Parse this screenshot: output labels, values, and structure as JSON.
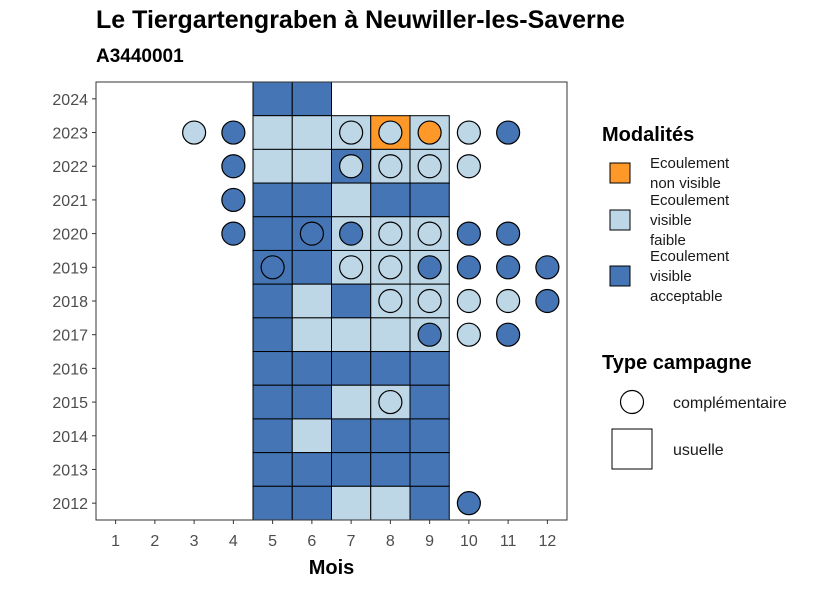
{
  "chart_data": {
    "type": "heatmap",
    "title": "Le Tiergartengraben à Neuwiller-les-Saverne",
    "subtitle": "A3440001",
    "xlabel": "Mois",
    "ylabel": "",
    "x_ticks": [
      1,
      2,
      3,
      4,
      5,
      6,
      7,
      8,
      9,
      10,
      11,
      12
    ],
    "y_ticks": [
      2012,
      2013,
      2014,
      2015,
      2016,
      2017,
      2018,
      2019,
      2020,
      2021,
      2022,
      2023,
      2024
    ],
    "colors": {
      "Ecoulement non visible": "#fe9929",
      "Ecoulement visible faible": "#bdd7e7",
      "Ecoulement visible acceptable": "#4575b4"
    },
    "legend_modalites": {
      "title": "Modalités",
      "items": [
        {
          "key": "Ecoulement non visible",
          "lines": [
            "Ecoulement",
            "non visible"
          ]
        },
        {
          "key": "Ecoulement visible faible",
          "lines": [
            "Ecoulement",
            "visible",
            "faible"
          ]
        },
        {
          "key": "Ecoulement visible acceptable",
          "lines": [
            "Ecoulement",
            "visible",
            "acceptable"
          ]
        }
      ]
    },
    "legend_type": {
      "title": "Type campagne",
      "items": [
        {
          "key": "complémentaire",
          "label": "complémentaire",
          "shape": "circle"
        },
        {
          "key": "usuelle",
          "label": "usuelle",
          "shape": "square"
        }
      ]
    },
    "usuelle": [
      {
        "year": 2024,
        "month": 5,
        "value": "Ecoulement visible acceptable"
      },
      {
        "year": 2024,
        "month": 6,
        "value": "Ecoulement visible acceptable"
      },
      {
        "year": 2023,
        "month": 5,
        "value": "Ecoulement visible faible"
      },
      {
        "year": 2023,
        "month": 6,
        "value": "Ecoulement visible faible"
      },
      {
        "year": 2023,
        "month": 7,
        "value": "Ecoulement visible faible"
      },
      {
        "year": 2023,
        "month": 8,
        "value": "Ecoulement non visible"
      },
      {
        "year": 2023,
        "month": 9,
        "value": "Ecoulement visible faible"
      },
      {
        "year": 2022,
        "month": 5,
        "value": "Ecoulement visible faible"
      },
      {
        "year": 2022,
        "month": 6,
        "value": "Ecoulement visible faible"
      },
      {
        "year": 2022,
        "month": 7,
        "value": "Ecoulement visible acceptable"
      },
      {
        "year": 2022,
        "month": 8,
        "value": "Ecoulement visible faible"
      },
      {
        "year": 2022,
        "month": 9,
        "value": "Ecoulement visible faible"
      },
      {
        "year": 2021,
        "month": 5,
        "value": "Ecoulement visible acceptable"
      },
      {
        "year": 2021,
        "month": 6,
        "value": "Ecoulement visible acceptable"
      },
      {
        "year": 2021,
        "month": 7,
        "value": "Ecoulement visible faible"
      },
      {
        "year": 2021,
        "month": 8,
        "value": "Ecoulement visible acceptable"
      },
      {
        "year": 2021,
        "month": 9,
        "value": "Ecoulement visible acceptable"
      },
      {
        "year": 2020,
        "month": 5,
        "value": "Ecoulement visible acceptable"
      },
      {
        "year": 2020,
        "month": 6,
        "value": "Ecoulement visible acceptable"
      },
      {
        "year": 2020,
        "month": 7,
        "value": "Ecoulement visible faible"
      },
      {
        "year": 2020,
        "month": 8,
        "value": "Ecoulement visible faible"
      },
      {
        "year": 2020,
        "month": 9,
        "value": "Ecoulement visible faible"
      },
      {
        "year": 2019,
        "month": 5,
        "value": "Ecoulement visible acceptable"
      },
      {
        "year": 2019,
        "month": 6,
        "value": "Ecoulement visible acceptable"
      },
      {
        "year": 2019,
        "month": 7,
        "value": "Ecoulement visible faible"
      },
      {
        "year": 2019,
        "month": 8,
        "value": "Ecoulement visible faible"
      },
      {
        "year": 2019,
        "month": 9,
        "value": "Ecoulement visible faible"
      },
      {
        "year": 2018,
        "month": 5,
        "value": "Ecoulement visible acceptable"
      },
      {
        "year": 2018,
        "month": 6,
        "value": "Ecoulement visible faible"
      },
      {
        "year": 2018,
        "month": 7,
        "value": "Ecoulement visible acceptable"
      },
      {
        "year": 2018,
        "month": 8,
        "value": "Ecoulement visible faible"
      },
      {
        "year": 2018,
        "month": 9,
        "value": "Ecoulement visible faible"
      },
      {
        "year": 2017,
        "month": 5,
        "value": "Ecoulement visible acceptable"
      },
      {
        "year": 2017,
        "month": 6,
        "value": "Ecoulement visible faible"
      },
      {
        "year": 2017,
        "month": 7,
        "value": "Ecoulement visible faible"
      },
      {
        "year": 2017,
        "month": 8,
        "value": "Ecoulement visible faible"
      },
      {
        "year": 2017,
        "month": 9,
        "value": "Ecoulement visible faible"
      },
      {
        "year": 2016,
        "month": 5,
        "value": "Ecoulement visible acceptable"
      },
      {
        "year": 2016,
        "month": 6,
        "value": "Ecoulement visible acceptable"
      },
      {
        "year": 2016,
        "month": 7,
        "value": "Ecoulement visible acceptable"
      },
      {
        "year": 2016,
        "month": 8,
        "value": "Ecoulement visible acceptable"
      },
      {
        "year": 2016,
        "month": 9,
        "value": "Ecoulement visible acceptable"
      },
      {
        "year": 2015,
        "month": 5,
        "value": "Ecoulement visible acceptable"
      },
      {
        "year": 2015,
        "month": 6,
        "value": "Ecoulement visible acceptable"
      },
      {
        "year": 2015,
        "month": 7,
        "value": "Ecoulement visible faible"
      },
      {
        "year": 2015,
        "month": 8,
        "value": "Ecoulement visible faible"
      },
      {
        "year": 2015,
        "month": 9,
        "value": "Ecoulement visible acceptable"
      },
      {
        "year": 2014,
        "month": 5,
        "value": "Ecoulement visible acceptable"
      },
      {
        "year": 2014,
        "month": 6,
        "value": "Ecoulement visible faible"
      },
      {
        "year": 2014,
        "month": 7,
        "value": "Ecoulement visible acceptable"
      },
      {
        "year": 2014,
        "month": 8,
        "value": "Ecoulement visible acceptable"
      },
      {
        "year": 2014,
        "month": 9,
        "value": "Ecoulement visible acceptable"
      },
      {
        "year": 2013,
        "month": 5,
        "value": "Ecoulement visible acceptable"
      },
      {
        "year": 2013,
        "month": 6,
        "value": "Ecoulement visible acceptable"
      },
      {
        "year": 2013,
        "month": 7,
        "value": "Ecoulement visible acceptable"
      },
      {
        "year": 2013,
        "month": 8,
        "value": "Ecoulement visible acceptable"
      },
      {
        "year": 2013,
        "month": 9,
        "value": "Ecoulement visible acceptable"
      },
      {
        "year": 2012,
        "month": 5,
        "value": "Ecoulement visible acceptable"
      },
      {
        "year": 2012,
        "month": 6,
        "value": "Ecoulement visible acceptable"
      },
      {
        "year": 2012,
        "month": 7,
        "value": "Ecoulement visible faible"
      },
      {
        "year": 2012,
        "month": 8,
        "value": "Ecoulement visible faible"
      },
      {
        "year": 2012,
        "month": 9,
        "value": "Ecoulement visible acceptable"
      }
    ],
    "complementaire": [
      {
        "year": 2023,
        "month": 3,
        "value": "Ecoulement visible faible"
      },
      {
        "year": 2023,
        "month": 4,
        "value": "Ecoulement visible acceptable"
      },
      {
        "year": 2023,
        "month": 7,
        "value": "Ecoulement visible faible"
      },
      {
        "year": 2023,
        "month": 8,
        "value": "Ecoulement visible faible"
      },
      {
        "year": 2023,
        "month": 9,
        "value": "Ecoulement non visible"
      },
      {
        "year": 2023,
        "month": 10,
        "value": "Ecoulement visible faible"
      },
      {
        "year": 2023,
        "month": 11,
        "value": "Ecoulement visible acceptable"
      },
      {
        "year": 2022,
        "month": 4,
        "value": "Ecoulement visible acceptable"
      },
      {
        "year": 2022,
        "month": 7,
        "value": "Ecoulement visible faible"
      },
      {
        "year": 2022,
        "month": 8,
        "value": "Ecoulement visible faible"
      },
      {
        "year": 2022,
        "month": 9,
        "value": "Ecoulement visible faible"
      },
      {
        "year": 2022,
        "month": 10,
        "value": "Ecoulement visible faible"
      },
      {
        "year": 2021,
        "month": 4,
        "value": "Ecoulement visible acceptable"
      },
      {
        "year": 2020,
        "month": 4,
        "value": "Ecoulement visible acceptable"
      },
      {
        "year": 2020,
        "month": 6,
        "value": "Ecoulement visible acceptable"
      },
      {
        "year": 2020,
        "month": 7,
        "value": "Ecoulement visible acceptable"
      },
      {
        "year": 2020,
        "month": 8,
        "value": "Ecoulement visible faible"
      },
      {
        "year": 2020,
        "month": 9,
        "value": "Ecoulement visible faible"
      },
      {
        "year": 2020,
        "month": 10,
        "value": "Ecoulement visible acceptable"
      },
      {
        "year": 2020,
        "month": 11,
        "value": "Ecoulement visible acceptable"
      },
      {
        "year": 2019,
        "month": 5,
        "value": "Ecoulement visible acceptable"
      },
      {
        "year": 2019,
        "month": 7,
        "value": "Ecoulement visible faible"
      },
      {
        "year": 2019,
        "month": 8,
        "value": "Ecoulement visible faible"
      },
      {
        "year": 2019,
        "month": 9,
        "value": "Ecoulement visible acceptable"
      },
      {
        "year": 2019,
        "month": 10,
        "value": "Ecoulement visible acceptable"
      },
      {
        "year": 2019,
        "month": 11,
        "value": "Ecoulement visible acceptable"
      },
      {
        "year": 2019,
        "month": 12,
        "value": "Ecoulement visible acceptable"
      },
      {
        "year": 2018,
        "month": 8,
        "value": "Ecoulement visible faible"
      },
      {
        "year": 2018,
        "month": 9,
        "value": "Ecoulement visible faible"
      },
      {
        "year": 2018,
        "month": 10,
        "value": "Ecoulement visible faible"
      },
      {
        "year": 2018,
        "month": 11,
        "value": "Ecoulement visible faible"
      },
      {
        "year": 2018,
        "month": 12,
        "value": "Ecoulement visible acceptable"
      },
      {
        "year": 2017,
        "month": 9,
        "value": "Ecoulement visible acceptable"
      },
      {
        "year": 2017,
        "month": 10,
        "value": "Ecoulement visible faible"
      },
      {
        "year": 2017,
        "month": 11,
        "value": "Ecoulement visible acceptable"
      },
      {
        "year": 2015,
        "month": 8,
        "value": "Ecoulement visible faible"
      },
      {
        "year": 2012,
        "month": 10,
        "value": "Ecoulement visible acceptable"
      }
    ]
  }
}
